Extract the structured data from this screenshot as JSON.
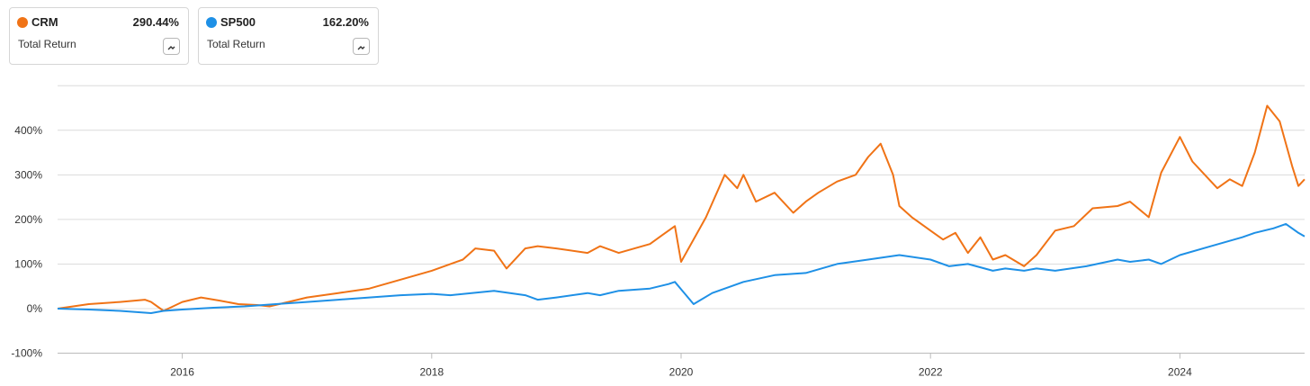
{
  "legend": [
    {
      "name": "CRM",
      "value": "290.44%",
      "subtitle": "Total Return",
      "color": "#F07316",
      "icon": "chart-options-icon"
    },
    {
      "name": "SP500",
      "value": "162.20%",
      "subtitle": "Total Return",
      "color": "#1E90E6",
      "icon": "chart-options-icon"
    }
  ],
  "chart_data": {
    "type": "line",
    "title": "",
    "xlabel": "",
    "ylabel": "",
    "xlim": [
      2015.0,
      2025.0
    ],
    "ylim": [
      -100,
      500
    ],
    "grid": true,
    "y_ticks": [
      -100,
      0,
      100,
      200,
      300,
      400
    ],
    "y_tick_labels": [
      "-100%",
      "0%",
      "100%",
      "200%",
      "300%",
      "400%"
    ],
    "x_ticks": [
      2016,
      2018,
      2020,
      2022,
      2024
    ],
    "x_tick_labels": [
      "2016",
      "2018",
      "2020",
      "2022",
      "2024"
    ],
    "legend_position": "top-left",
    "series": [
      {
        "name": "CRM",
        "color": "#F07316",
        "x": [
          2015.0,
          2015.25,
          2015.5,
          2015.7,
          2015.75,
          2015.85,
          2016.0,
          2016.15,
          2016.3,
          2016.45,
          2016.6,
          2016.7,
          2016.85,
          2017.0,
          2017.25,
          2017.5,
          2017.75,
          2018.0,
          2018.25,
          2018.35,
          2018.5,
          2018.6,
          2018.75,
          2018.85,
          2019.0,
          2019.25,
          2019.35,
          2019.5,
          2019.75,
          2019.85,
          2019.95,
          2020.0,
          2020.2,
          2020.35,
          2020.45,
          2020.5,
          2020.6,
          2020.75,
          2020.9,
          2021.0,
          2021.1,
          2021.25,
          2021.4,
          2021.5,
          2021.6,
          2021.7,
          2021.75,
          2021.85,
          2022.0,
          2022.1,
          2022.2,
          2022.3,
          2022.4,
          2022.5,
          2022.6,
          2022.75,
          2022.85,
          2023.0,
          2023.15,
          2023.3,
          2023.5,
          2023.6,
          2023.75,
          2023.85,
          2024.0,
          2024.1,
          2024.2,
          2024.3,
          2024.4,
          2024.5,
          2024.6,
          2024.7,
          2024.8,
          2024.9,
          2024.95,
          2025.0
        ],
        "values": [
          0,
          10,
          15,
          20,
          15,
          -5,
          15,
          25,
          18,
          10,
          8,
          5,
          15,
          25,
          35,
          45,
          65,
          85,
          110,
          135,
          130,
          90,
          135,
          140,
          135,
          125,
          140,
          125,
          145,
          165,
          185,
          105,
          205,
          300,
          270,
          300,
          240,
          260,
          215,
          240,
          260,
          285,
          300,
          340,
          370,
          300,
          230,
          205,
          175,
          155,
          170,
          125,
          160,
          110,
          120,
          95,
          120,
          175,
          185,
          225,
          230,
          240,
          205,
          305,
          385,
          330,
          300,
          270,
          290,
          275,
          350,
          455,
          420,
          320,
          275,
          290
        ]
      },
      {
        "name": "SP500",
        "color": "#1E90E6",
        "x": [
          2015.0,
          2015.25,
          2015.5,
          2015.75,
          2015.85,
          2016.0,
          2016.25,
          2016.5,
          2016.75,
          2017.0,
          2017.25,
          2017.5,
          2017.75,
          2018.0,
          2018.15,
          2018.5,
          2018.75,
          2018.85,
          2019.0,
          2019.25,
          2019.35,
          2019.5,
          2019.75,
          2019.9,
          2019.95,
          2020.1,
          2020.25,
          2020.5,
          2020.75,
          2021.0,
          2021.25,
          2021.5,
          2021.75,
          2022.0,
          2022.15,
          2022.3,
          2022.5,
          2022.6,
          2022.75,
          2022.85,
          2023.0,
          2023.25,
          2023.5,
          2023.6,
          2023.75,
          2023.85,
          2024.0,
          2024.25,
          2024.5,
          2024.6,
          2024.75,
          2024.85,
          2024.95,
          2025.0
        ],
        "values": [
          0,
          -2,
          -5,
          -10,
          -5,
          -2,
          2,
          5,
          10,
          15,
          20,
          25,
          30,
          33,
          30,
          40,
          30,
          20,
          25,
          35,
          30,
          40,
          45,
          55,
          60,
          10,
          35,
          60,
          75,
          80,
          100,
          110,
          120,
          110,
          95,
          100,
          85,
          90,
          85,
          90,
          85,
          95,
          110,
          105,
          110,
          100,
          120,
          140,
          160,
          170,
          180,
          190,
          170,
          162
        ]
      }
    ]
  }
}
